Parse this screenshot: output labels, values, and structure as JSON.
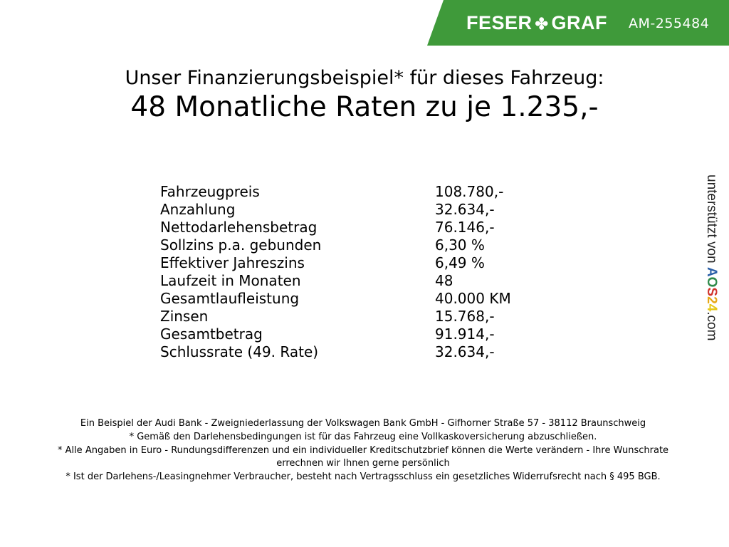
{
  "header": {
    "brand_left": "FESER",
    "brand_right": "GRAF",
    "vehicle_code": "AM-255484",
    "brand_color": "#3f9a3a"
  },
  "title": {
    "line1": "Unser Finanzierungsbeispiel* für dieses Fahrzeug:",
    "line2": "48 Monatliche Raten zu je 1.235,-"
  },
  "table": [
    {
      "label": "Fahrzeugpreis",
      "value": "108.780,-"
    },
    {
      "label": "Anzahlung",
      "value": "32.634,-"
    },
    {
      "label": "Nettodarlehensbetrag",
      "value": "76.146,-"
    },
    {
      "label": "Sollzins p.a. gebunden",
      "value": "6,30 %"
    },
    {
      "label": "Effektiver Jahreszins",
      "value": "6,49 %"
    },
    {
      "label": "Laufzeit in Monaten",
      "value": "48"
    },
    {
      "label": "Gesamtlaufleistung",
      "value": "40.000 KM"
    },
    {
      "label": "Zinsen",
      "value": "15.768,-"
    },
    {
      "label": "Gesamtbetrag",
      "value": "91.914,-"
    },
    {
      "label": "Schlussrate (49. Rate)",
      "value": "32.634,-"
    }
  ],
  "side": {
    "prefix": "unterstützt von",
    "logo": "AOS24",
    "suffix": ".com"
  },
  "footnotes": [
    "Ein Beispiel der Audi Bank - Zweigniederlassung der Volkswagen Bank GmbH - Gifhorner Straße 57 - 38112 Braunschweig",
    "* Gemäß den Darlehensbedingungen ist für das Fahrzeug eine Vollkaskoversicherung abzuschließen.",
    "* Alle Angaben in Euro - Rundungsdifferenzen und ein individueller Kreditschutzbrief können die Werte verändern - Ihre Wunschrate errechnen wir Ihnen gerne persönlich",
    "* Ist der Darlehens-/Leasingnehmer Verbraucher, besteht nach Vertragsschluss ein gesetzliches Widerrufsrecht nach § 495 BGB."
  ]
}
